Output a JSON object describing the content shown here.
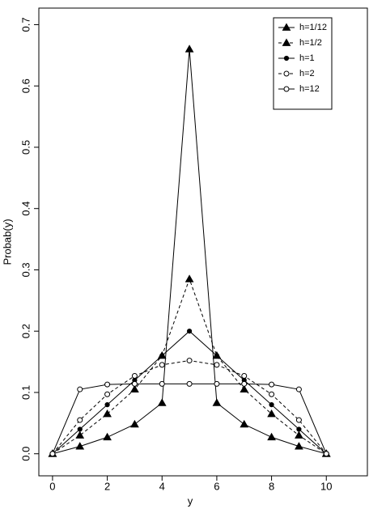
{
  "chart_data": {
    "type": "line",
    "xlabel": "y",
    "ylabel": "Probab(y)",
    "x": [
      0,
      1,
      2,
      3,
      4,
      5,
      6,
      7,
      8,
      9,
      10
    ],
    "series": [
      {
        "name": "h=1/12",
        "color": "#000000",
        "marker": "triangle-filled",
        "dashed": false,
        "values": [
          0,
          0.012,
          0.027,
          0.048,
          0.083,
          0.66,
          0.083,
          0.048,
          0.027,
          0.012,
          0
        ]
      },
      {
        "name": "h=1/2",
        "color": "#000000",
        "marker": "triangle-filled",
        "dashed": true,
        "values": [
          0,
          0.03,
          0.065,
          0.105,
          0.16,
          0.285,
          0.16,
          0.105,
          0.065,
          0.03,
          0
        ]
      },
      {
        "name": "h=1",
        "color": "#000000",
        "marker": "circle-filled",
        "dashed": false,
        "values": [
          0,
          0.04,
          0.08,
          0.12,
          0.16,
          0.2,
          0.16,
          0.12,
          0.08,
          0.04,
          0
        ]
      },
      {
        "name": "h=2",
        "color": "#000000",
        "marker": "circle-open",
        "dashed": true,
        "values": [
          0,
          0.055,
          0.097,
          0.127,
          0.145,
          0.152,
          0.145,
          0.127,
          0.097,
          0.055,
          0
        ]
      },
      {
        "name": "h=12",
        "color": "#000000",
        "marker": "circle-open",
        "dashed": false,
        "values": [
          0,
          0.105,
          0.113,
          0.114,
          0.114,
          0.114,
          0.114,
          0.114,
          0.113,
          0.105,
          0
        ]
      }
    ],
    "xlim": [
      -0.5,
      11.5
    ],
    "ylim": [
      -0.036,
      0.727
    ],
    "xticks": [
      0,
      2,
      4,
      6,
      8,
      10
    ],
    "yticks": [
      {
        "value": 0,
        "label": "0.0"
      },
      0.1,
      0.2,
      0.3,
      0.4,
      0.5,
      0.6,
      0.7
    ],
    "legend": "top-right",
    "grid": false
  }
}
